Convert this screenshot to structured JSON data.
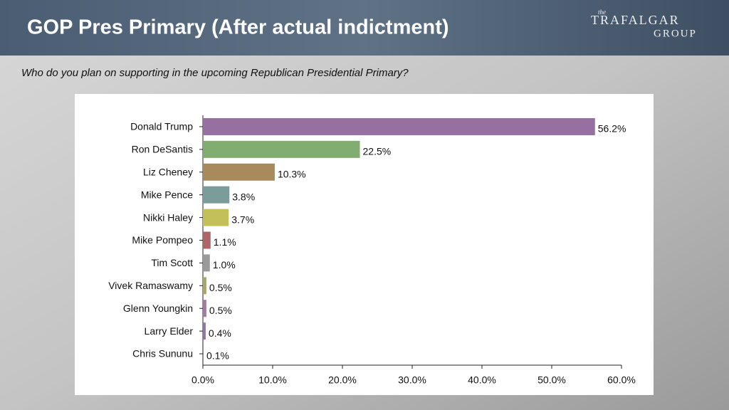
{
  "title": "GOP Pres Primary (After actual indictment)",
  "logo": {
    "top": "the",
    "name": "TRAFALGAR",
    "bottom": "GROUP"
  },
  "chart_data": {
    "type": "hbar",
    "subtitle": "Who do you plan on supporting in the upcoming Republican Presidential Primary?",
    "categories": [
      "Donald Trump",
      "Ron DeSantis",
      "Liz Cheney",
      "Mike Pence",
      "Nikki Haley",
      "Mike Pompeo",
      "Tim Scott",
      "Vivek Ramaswamy",
      "Glenn Youngkin",
      "Larry Elder",
      "Chris Sununu"
    ],
    "values": [
      56.2,
      22.5,
      10.3,
      3.8,
      3.7,
      1.1,
      1.0,
      0.5,
      0.5,
      0.4,
      0.1
    ],
    "value_labels": [
      "56.2%",
      "22.5%",
      "10.3%",
      "3.8%",
      "3.7%",
      "1.1%",
      "1.0%",
      "0.5%",
      "0.5%",
      "0.4%",
      "0.1%"
    ],
    "colors": [
      "#9670a0",
      "#82ad70",
      "#a88a5c",
      "#7a9c9a",
      "#c3c05a",
      "#b06468",
      "#9a9a9a",
      "#a8a860",
      "#a878a0",
      "#8a78a8",
      "#888888"
    ],
    "xlim": [
      0,
      60
    ],
    "xticks": [
      {
        "value": 0,
        "label": "0.0%"
      },
      {
        "value": 10,
        "label": "10.0%"
      },
      {
        "value": 20,
        "label": "20.0%"
      },
      {
        "value": 30,
        "label": "30.0%"
      },
      {
        "value": 40,
        "label": "40.0%"
      },
      {
        "value": 50,
        "label": "50.0%"
      },
      {
        "value": 60,
        "label": "60.0%"
      }
    ]
  }
}
